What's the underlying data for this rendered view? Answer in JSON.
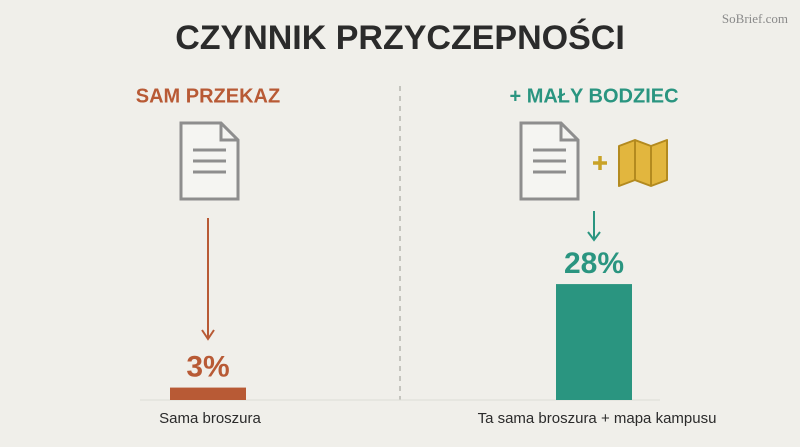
{
  "chart_data": {
    "type": "bar",
    "title": "CZYNNIK PRZYCZEPNOŚCI",
    "watermark": "SoBrief.com",
    "panel_headers": [
      "SAM PRZEKAZ",
      "+ MAŁY BODZIEC"
    ],
    "categories": [
      "Sama broszura",
      "Ta sama broszura + mapa kampusu"
    ],
    "values": [
      3,
      28
    ],
    "value_labels": [
      "3%",
      "28%"
    ],
    "colors": [
      "#b85a35",
      "#2a9580"
    ]
  }
}
